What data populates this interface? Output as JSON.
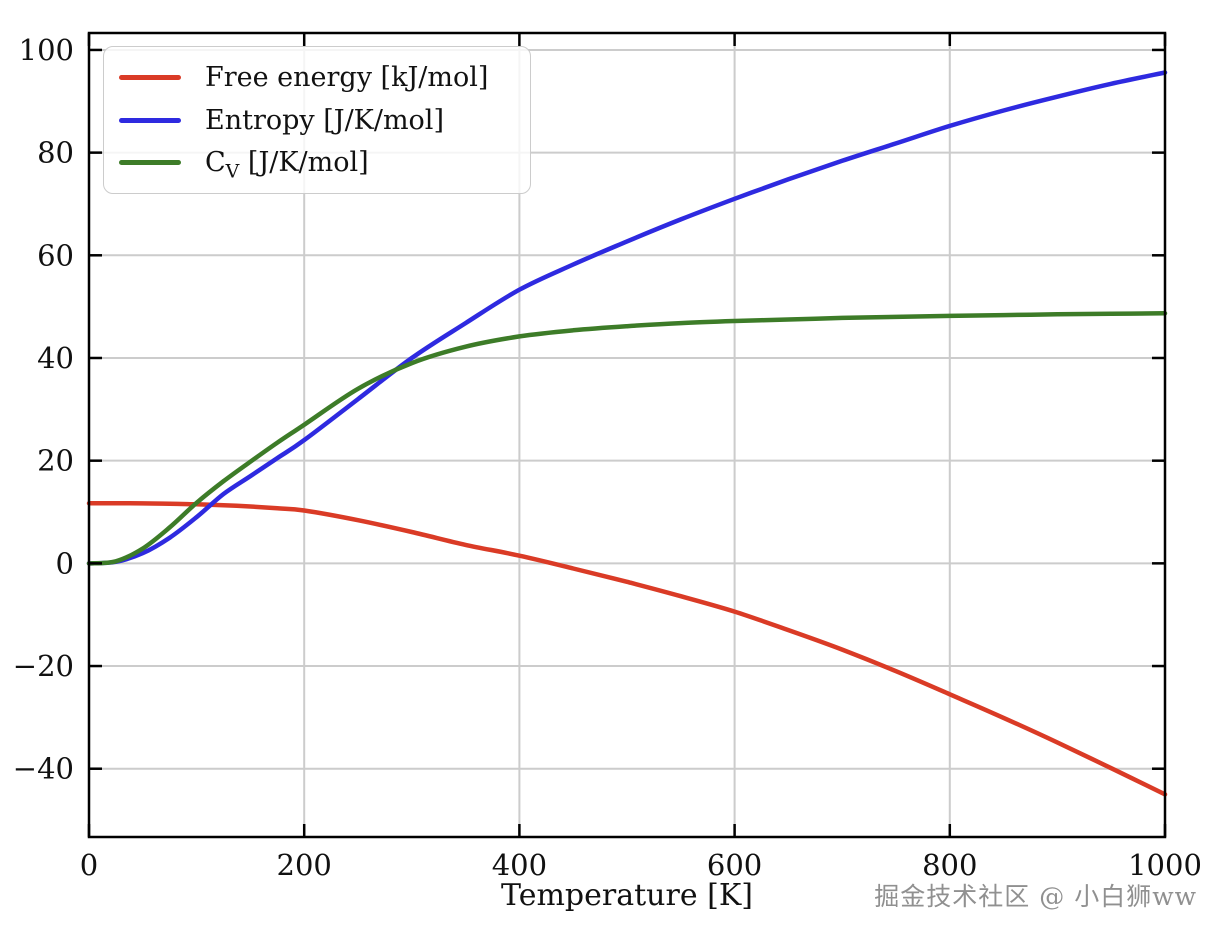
{
  "chart_data": {
    "type": "line",
    "title": "",
    "xlabel": "Temperature [K]",
    "ylabel": "",
    "xlim": [
      0,
      1000
    ],
    "ylim": [
      -53.3,
      103.3
    ],
    "xticks": [
      0,
      200,
      400,
      600,
      800,
      1000
    ],
    "yticks": [
      -40,
      -20,
      0,
      20,
      40,
      60,
      80,
      100
    ],
    "grid": true,
    "legend_position": "upper left",
    "x": [
      0,
      25,
      50,
      75,
      100,
      125,
      150,
      175,
      200,
      250,
      300,
      350,
      400,
      450,
      500,
      550,
      600,
      650,
      700,
      750,
      800,
      850,
      900,
      950,
      1000
    ],
    "series": [
      {
        "name": "Free energy [kJ/mol]",
        "color": "#da3b26",
        "values": [
          11.7,
          11.7,
          11.68,
          11.62,
          11.5,
          11.32,
          11.08,
          10.72,
          10.3,
          8.4,
          6.1,
          3.6,
          1.5,
          -1.0,
          -3.6,
          -6.4,
          -9.4,
          -13.0,
          -16.8,
          -21.0,
          -25.5,
          -30.1,
          -34.9,
          -39.9,
          -45.0
        ]
      },
      {
        "name": "Entropy [J/K/mol]",
        "color": "#2e2ae0",
        "values": [
          0,
          0.3,
          2.0,
          5.0,
          9.0,
          13.5,
          17.0,
          20.5,
          24.0,
          32.0,
          40.0,
          46.8,
          53.3,
          58.2,
          62.7,
          67.0,
          71.0,
          74.8,
          78.4,
          81.8,
          85.2,
          88.2,
          90.9,
          93.4,
          95.6
        ]
      },
      {
        "name": "C_V [J/K/mol]",
        "color": "#3d7c28",
        "values": [
          0,
          0.4,
          2.9,
          7.0,
          11.8,
          16.0,
          19.8,
          23.5,
          27.0,
          34.0,
          39.0,
          42.2,
          44.2,
          45.4,
          46.2,
          46.8,
          47.2,
          47.5,
          47.8,
          48.0,
          48.2,
          48.35,
          48.5,
          48.6,
          48.7
        ]
      }
    ]
  },
  "legend": [
    {
      "pre": "Free energy [kJ/mol]",
      "sub": "",
      "post": ""
    },
    {
      "pre": "Entropy [J/K/mol]",
      "sub": "",
      "post": ""
    },
    {
      "pre": "C",
      "sub": "V",
      "post": " [J/K/mol]"
    }
  ],
  "watermark": {
    "text": "掘金技术社区 @ 小白狮ww"
  },
  "colors": {
    "grid": "#cccccc",
    "spine": "#000000",
    "background": "#ffffff",
    "tick_label": "#111111"
  }
}
